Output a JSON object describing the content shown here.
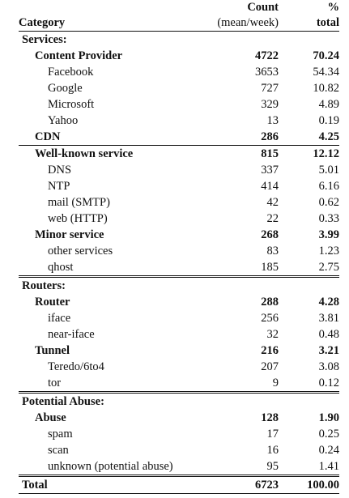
{
  "header": {
    "category": "Category",
    "count_top": "Count",
    "count_sub": "(mean/week)",
    "pct_top": "%",
    "pct_sub": "total"
  },
  "rows": [
    {
      "type": "section",
      "label": "Services:"
    },
    {
      "type": "group",
      "label": "Content Provider",
      "count": "4722",
      "pct": "70.24"
    },
    {
      "type": "item",
      "label": "Facebook",
      "count": "3653",
      "pct": "54.34"
    },
    {
      "type": "item",
      "label": "Google",
      "count": "727",
      "pct": "10.82"
    },
    {
      "type": "item",
      "label": "Microsoft",
      "count": "329",
      "pct": "4.89"
    },
    {
      "type": "item",
      "label": "Yahoo",
      "count": "13",
      "pct": "0.19"
    },
    {
      "type": "group",
      "label": "CDN",
      "count": "286",
      "pct": "4.25"
    },
    {
      "type": "group",
      "label": "Well-known service",
      "count": "815",
      "pct": "12.12",
      "line": true
    },
    {
      "type": "item",
      "label": "DNS",
      "count": "337",
      "pct": "5.01"
    },
    {
      "type": "item",
      "label": "NTP",
      "count": "414",
      "pct": "6.16"
    },
    {
      "type": "item",
      "label": "mail (SMTP)",
      "count": "42",
      "pct": "0.62"
    },
    {
      "type": "item",
      "label": "web (HTTP)",
      "count": "22",
      "pct": "0.33"
    },
    {
      "type": "group",
      "label": "Minor service",
      "count": "268",
      "pct": "3.99"
    },
    {
      "type": "item",
      "label": "other services",
      "count": "83",
      "pct": "1.23"
    },
    {
      "type": "item",
      "label": "qhost",
      "count": "185",
      "pct": "2.75"
    },
    {
      "type": "section",
      "label": "Routers:",
      "double": true
    },
    {
      "type": "group",
      "label": "Router",
      "count": "288",
      "pct": "4.28"
    },
    {
      "type": "item",
      "label": "iface",
      "count": "256",
      "pct": "3.81"
    },
    {
      "type": "item",
      "label": "near-iface",
      "count": "32",
      "pct": "0.48"
    },
    {
      "type": "group",
      "label": "Tunnel",
      "count": "216",
      "pct": "3.21"
    },
    {
      "type": "item",
      "label": "Teredo/6to4",
      "count": "207",
      "pct": "3.08"
    },
    {
      "type": "item",
      "label": "tor",
      "count": "9",
      "pct": "0.12"
    },
    {
      "type": "section",
      "label": "Potential Abuse:",
      "double": true
    },
    {
      "type": "group",
      "label": "Abuse",
      "count": "128",
      "pct": "1.90"
    },
    {
      "type": "item",
      "label": "spam",
      "count": "17",
      "pct": "0.25"
    },
    {
      "type": "item",
      "label": "scan",
      "count": "16",
      "pct": "0.24"
    },
    {
      "type": "item",
      "label": "unknown (potential abuse)",
      "count": "95",
      "pct": "1.41"
    }
  ],
  "total": {
    "label": "Total",
    "count": "6723",
    "pct": "100.00"
  }
}
